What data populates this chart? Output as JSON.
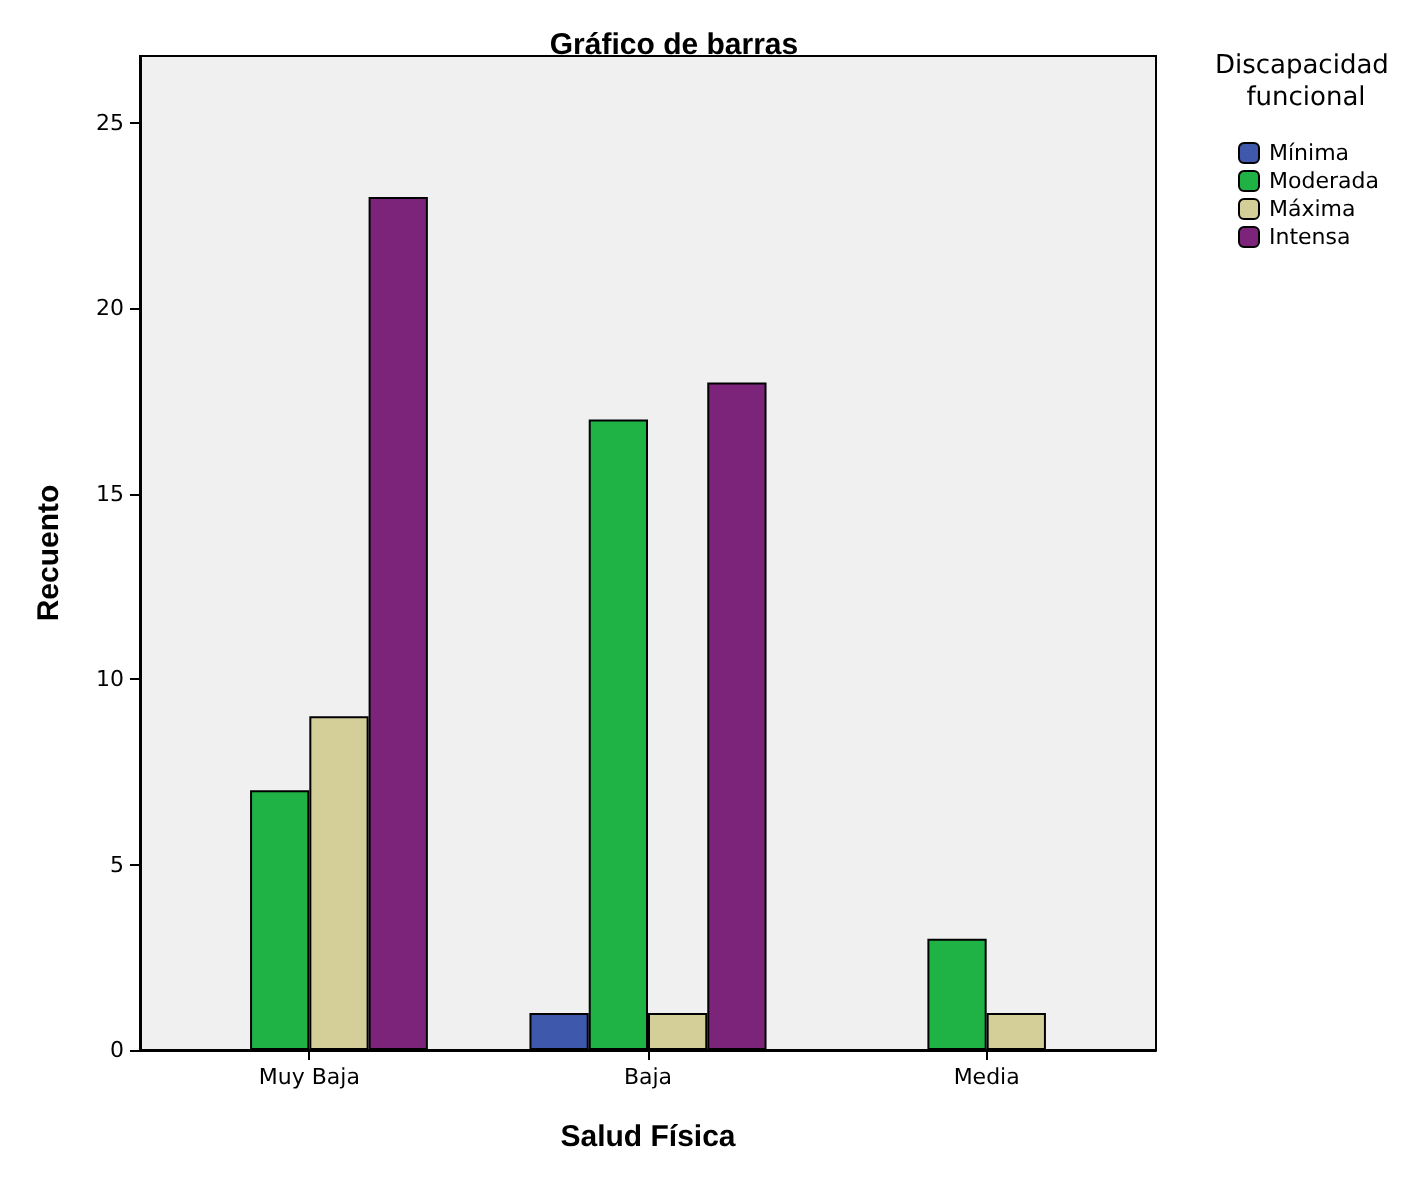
{
  "chart_data": {
    "type": "bar",
    "title": "Gráfico de barras",
    "xlabel": "Salud Física",
    "ylabel": "Recuento",
    "legend_title": "Discapacidad funcional",
    "categories": [
      "Muy Baja",
      "Baja",
      "Media"
    ],
    "series": [
      {
        "name": "Mínima",
        "color": "#3e58ac",
        "values": [
          null,
          1,
          null
        ]
      },
      {
        "name": "Moderada",
        "color": "#1fb345",
        "values": [
          7,
          17,
          3
        ]
      },
      {
        "name": "Máxima",
        "color": "#d4cf98",
        "values": [
          9,
          1,
          1
        ]
      },
      {
        "name": "Intensa",
        "color": "#7b2479",
        "values": [
          23,
          18,
          null
        ]
      }
    ],
    "ylim": [
      0,
      26.8
    ],
    "yticks": [
      0,
      5,
      10,
      15,
      20,
      25
    ],
    "grid": false,
    "legend": "right"
  }
}
